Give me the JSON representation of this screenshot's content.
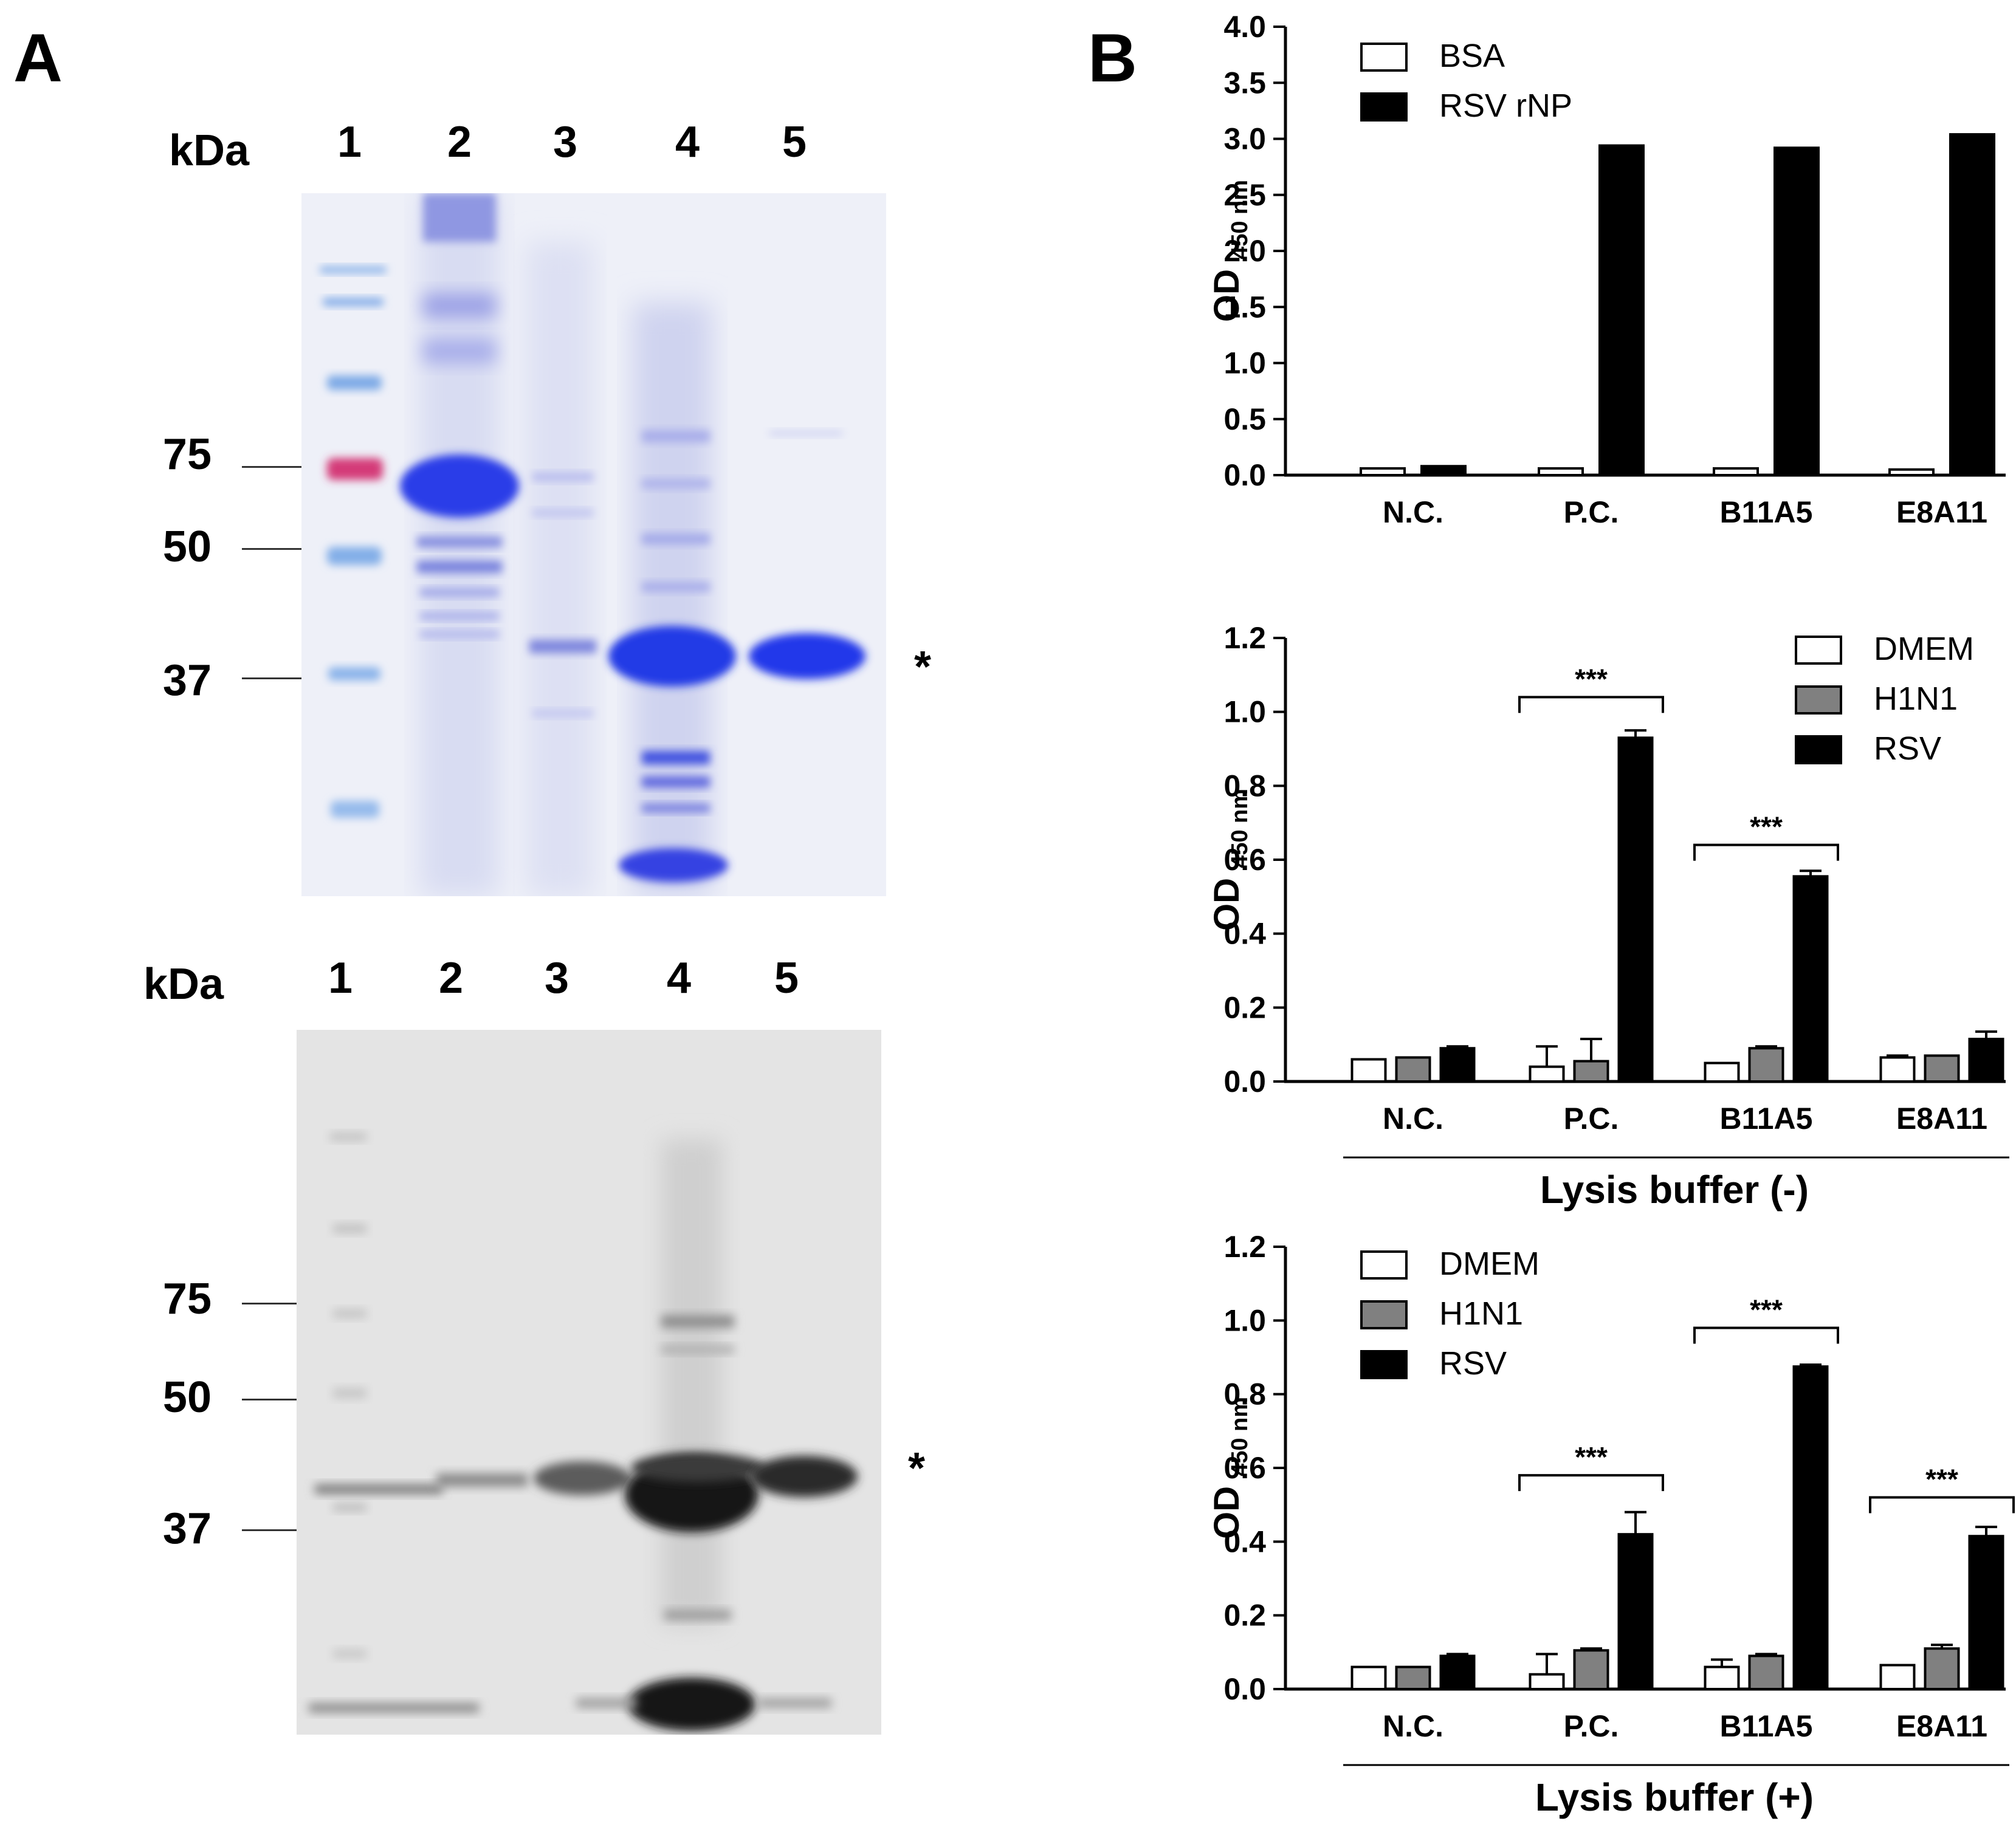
{
  "panel_a": {
    "letter": "A",
    "coomassie": {
      "kda_label": "kDa",
      "lanes": [
        "1",
        "2",
        "3",
        "4",
        "5"
      ],
      "markers": [
        "75",
        "50",
        "37"
      ],
      "target_mark": "*"
    },
    "western": {
      "kda_label": "kDa",
      "lanes": [
        "1",
        "2",
        "3",
        "4",
        "5"
      ],
      "markers": [
        "75",
        "50",
        "37"
      ],
      "target_mark": "*"
    }
  },
  "panel_b": {
    "letter": "B"
  },
  "chart_data": [
    {
      "type": "bar",
      "title": "",
      "ylabel": "OD",
      "ylabel_sub": "450 nm",
      "xlabel": "",
      "categories": [
        "N.C.",
        "P.C.",
        "B11A5",
        "E8A11"
      ],
      "ylim": [
        0,
        4.0
      ],
      "yticks": [
        "0.0",
        "0.5",
        "1.0",
        "1.5",
        "2.0",
        "2.5",
        "3.0",
        "3.5",
        "4.0"
      ],
      "legend_position": "top-left",
      "series": [
        {
          "name": "BSA",
          "color": "#ffffff",
          "values": [
            0.06,
            0.06,
            0.06,
            0.05
          ]
        },
        {
          "name": "RSV rNP",
          "color": "#000000",
          "values": [
            0.08,
            2.94,
            2.92,
            3.04
          ]
        }
      ],
      "significance": []
    },
    {
      "type": "bar",
      "title": "",
      "ylabel": "OD",
      "ylabel_sub": "450 nm",
      "xlabel": "Lysis buffer (-)",
      "categories": [
        "N.C.",
        "P.C.",
        "B11A5",
        "E8A11"
      ],
      "ylim": [
        0,
        1.2
      ],
      "yticks": [
        "0.0",
        "0.2",
        "0.4",
        "0.6",
        "0.8",
        "1.0",
        "1.2"
      ],
      "legend_position": "top-right",
      "series": [
        {
          "name": "DMEM",
          "color": "#ffffff",
          "values": [
            0.06,
            0.04,
            0.05,
            0.065
          ],
          "errors": [
            0.0,
            0.055,
            0.0,
            0.005
          ]
        },
        {
          "name": "H1N1",
          "color": "#808080",
          "values": [
            0.065,
            0.055,
            0.09,
            0.07
          ],
          "errors": [
            0.0,
            0.06,
            0.005,
            0.0
          ]
        },
        {
          "name": "RSV",
          "color": "#000000",
          "values": [
            0.09,
            0.93,
            0.555,
            0.115
          ],
          "errors": [
            0.005,
            0.02,
            0.015,
            0.02
          ]
        }
      ],
      "significance": [
        {
          "category": "P.C.",
          "label": "***",
          "level": 1.04
        },
        {
          "category": "B11A5",
          "label": "***",
          "level": 0.64
        }
      ]
    },
    {
      "type": "bar",
      "title": "",
      "ylabel": "OD",
      "ylabel_sub": "450 nm",
      "xlabel": "Lysis buffer (+)",
      "categories": [
        "N.C.",
        "P.C.",
        "B11A5",
        "E8A11"
      ],
      "ylim": [
        0,
        1.2
      ],
      "yticks": [
        "0.0",
        "0.2",
        "0.4",
        "0.6",
        "0.8",
        "1.0",
        "1.2"
      ],
      "legend_position": "top-left",
      "series": [
        {
          "name": "DMEM",
          "color": "#ffffff",
          "values": [
            0.06,
            0.04,
            0.06,
            0.065
          ],
          "errors": [
            0.0,
            0.055,
            0.02,
            0.0
          ]
        },
        {
          "name": "H1N1",
          "color": "#808080",
          "values": [
            0.06,
            0.105,
            0.09,
            0.11
          ],
          "errors": [
            0.0,
            0.005,
            0.005,
            0.01
          ]
        },
        {
          "name": "RSV",
          "color": "#000000",
          "values": [
            0.09,
            0.42,
            0.875,
            0.415
          ],
          "errors": [
            0.005,
            0.06,
            0.005,
            0.025
          ]
        }
      ],
      "significance": [
        {
          "category": "P.C.",
          "label": "***",
          "level": 0.58
        },
        {
          "category": "B11A5",
          "label": "***",
          "level": 0.98
        },
        {
          "category": "E8A11",
          "label": "***",
          "level": 0.52
        }
      ]
    }
  ]
}
